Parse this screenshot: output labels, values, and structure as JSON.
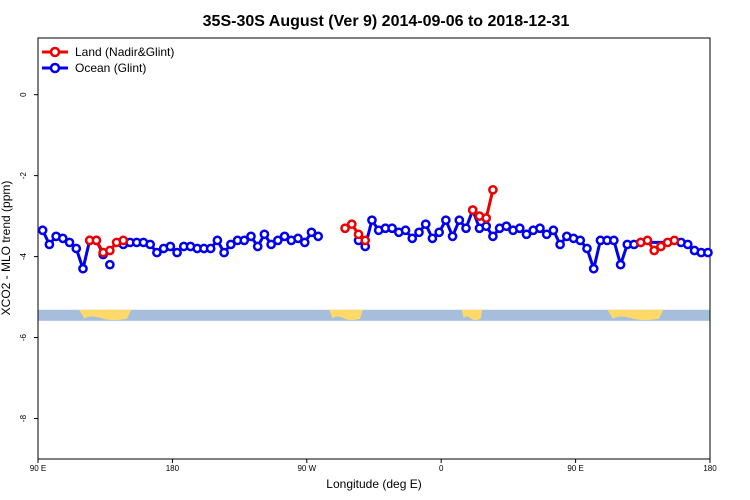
{
  "chart_data": {
    "type": "line",
    "title": "35S-30S August (Ver 9)   2014-09-06 to 2018-12-31",
    "xlabel": "Longitude (deg E)",
    "ylabel": "XCO2 - MLO trend (ppm)",
    "xlim": [
      90,
      450
    ],
    "ylim": [
      -9.0,
      1.4
    ],
    "x_ticks": [
      {
        "value": 90,
        "label": "90 E"
      },
      {
        "value": 162,
        "label": "180"
      },
      {
        "value": 234,
        "label": "90 W"
      },
      {
        "value": 306,
        "label": "0"
      },
      {
        "value": 378,
        "label": "90 E"
      },
      {
        "value": 450,
        "label": "180"
      }
    ],
    "y_ticks": [
      {
        "value": 0,
        "label": "0"
      },
      {
        "value": -2,
        "label": "-2"
      },
      {
        "value": -4,
        "label": "-4"
      },
      {
        "value": -6,
        "label": "-6"
      },
      {
        "value": -8,
        "label": "-8"
      }
    ],
    "legend_position": "top-left",
    "grid": false,
    "land_ocean_strip": {
      "y_center": -5.45,
      "ocean_color": "#a6bddb",
      "land_color": "#fdd96a",
      "land_spans": [
        [
          112,
          140
        ],
        [
          246,
          264
        ],
        [
          317,
          328
        ],
        [
          395,
          425
        ]
      ]
    },
    "series": [
      {
        "name": "Ocean (Glint)",
        "color": "#0000ee",
        "x": [
          92.5,
          96.1,
          99.7,
          103.3,
          106.9,
          110.5,
          114.1,
          117.7,
          121.3,
          124.9,
          128.5,
          135.7,
          139.3,
          142.9,
          146.5,
          150.1,
          153.7,
          157.3,
          160.9,
          164.5,
          168.1,
          171.7,
          175.3,
          178.9,
          182.5,
          186.1,
          189.7,
          193.3,
          196.9,
          200.5,
          204.1,
          207.7,
          211.3,
          214.9,
          218.5,
          222.1,
          225.7,
          229.3,
          232.9,
          236.5,
          240.1,
          261.7,
          265.3,
          268.9,
          272.5,
          276.1,
          279.7,
          283.3,
          286.9,
          290.5,
          294.1,
          297.7,
          301.3,
          304.9,
          308.5,
          312.1,
          315.7,
          319.3,
          322.9,
          326.5,
          330.1,
          333.7,
          337.3,
          340.9,
          344.5,
          348.1,
          351.7,
          355.3,
          358.9,
          362.5,
          366.1,
          369.7,
          373.3,
          376.9,
          380.5,
          384.1,
          387.7,
          391.3,
          394.9,
          398.5,
          402.1,
          405.7,
          409.3,
          412.9,
          434.5,
          438.1,
          441.7,
          445.3,
          448.9
        ],
        "values": [
          -3.35,
          -3.7,
          -3.5,
          -3.55,
          -3.65,
          -3.8,
          -4.3,
          -3.6,
          -3.6,
          -3.95,
          -4.2,
          -3.7,
          -3.65,
          -3.65,
          -3.65,
          -3.7,
          -3.9,
          -3.8,
          -3.75,
          -3.9,
          -3.75,
          -3.75,
          -3.8,
          -3.8,
          -3.8,
          -3.6,
          -3.9,
          -3.7,
          -3.6,
          -3.6,
          -3.5,
          -3.75,
          -3.45,
          -3.7,
          -3.6,
          -3.5,
          -3.6,
          -3.55,
          -3.65,
          -3.4,
          -3.5,
          -3.6,
          -3.75,
          -3.1,
          -3.35,
          -3.3,
          -3.3,
          -3.4,
          -3.35,
          -3.55,
          -3.4,
          -3.2,
          -3.55,
          -3.4,
          -3.1,
          -3.5,
          -3.1,
          -3.3,
          -2.85,
          -3.3,
          -3.25,
          -3.5,
          -3.3,
          -3.25,
          -3.35,
          -3.3,
          -3.45,
          -3.35,
          -3.3,
          -3.45,
          -3.35,
          -3.7,
          -3.5,
          -3.55,
          -3.6,
          -3.8,
          -4.3,
          -3.6,
          -3.6,
          -3.6,
          -4.2,
          -3.7,
          -3.7,
          -3.65,
          -3.65,
          -3.7,
          -3.85,
          -3.9,
          -3.9
        ],
        "segments": [
          [
            0,
            9
          ],
          [
            11,
            40
          ],
          [
            41,
            82
          ],
          [
            83,
            88
          ]
        ]
      },
      {
        "name": "Land (Nadir&Glint)",
        "color": "#ee0000",
        "x": [
          117.7,
          121.3,
          124.9,
          128.5,
          132.1,
          135.7,
          254.5,
          258.1,
          261.7,
          265.3,
          322.9,
          326.5,
          330.1,
          333.7,
          412.9,
          416.5,
          420.1,
          423.7,
          427.3,
          430.9
        ],
        "values": [
          -3.6,
          -3.6,
          -3.9,
          -3.85,
          -3.65,
          -3.6,
          -3.3,
          -3.2,
          -3.45,
          -3.6,
          -2.85,
          -3.0,
          -3.05,
          -2.35,
          -3.65,
          -3.6,
          -3.85,
          -3.75,
          -3.65,
          -3.6
        ],
        "segments": [
          [
            0,
            5
          ],
          [
            6,
            9
          ],
          [
            10,
            13
          ],
          [
            14,
            19
          ]
        ]
      }
    ]
  }
}
